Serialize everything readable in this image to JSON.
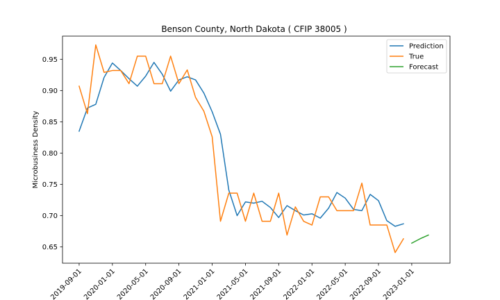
{
  "chart_data": {
    "type": "line",
    "title": "Benson County, North Dakota ( CFIP 38005 )",
    "xlabel": "",
    "ylabel": "Microbusiness Density",
    "ylim": [
      0.624,
      0.987
    ],
    "yticks": [
      0.65,
      0.7,
      0.75,
      0.8,
      0.85,
      0.9,
      0.95
    ],
    "ytick_labels": [
      "0.65",
      "0.70",
      "0.75",
      "0.80",
      "0.85",
      "0.90",
      "0.95"
    ],
    "xrange": [
      -2.0,
      44.6
    ],
    "xticks": [
      0,
      4,
      8,
      12,
      16,
      20,
      24,
      28,
      32,
      36,
      40
    ],
    "xtick_labels": [
      "2019-09-01",
      "2020-01-01",
      "2020-05-01",
      "2020-09-01",
      "2021-01-01",
      "2021-05-01",
      "2021-09-01",
      "2022-01-01",
      "2022-05-01",
      "2022-09-01",
      "2023-01-01"
    ],
    "legend": {
      "position": "top-right",
      "entries": [
        "Prediction",
        "True",
        "Forecast"
      ]
    },
    "series": [
      {
        "name": "Prediction",
        "color": "#1f77b4",
        "x": [
          0,
          1,
          2,
          3,
          4,
          5,
          6,
          7,
          8,
          9,
          10,
          11,
          12,
          13,
          14,
          15,
          16,
          17,
          18,
          19,
          20,
          21,
          22,
          23,
          24,
          25,
          26,
          27,
          28,
          29,
          30,
          31,
          32,
          33,
          34,
          35,
          36,
          37,
          38,
          39
        ],
        "values": [
          0.835,
          0.872,
          0.878,
          0.921,
          0.944,
          0.932,
          0.919,
          0.907,
          0.923,
          0.945,
          0.926,
          0.899,
          0.917,
          0.922,
          0.917,
          0.896,
          0.866,
          0.83,
          0.741,
          0.7,
          0.722,
          0.72,
          0.723,
          0.713,
          0.697,
          0.716,
          0.708,
          0.701,
          0.703,
          0.696,
          0.712,
          0.737,
          0.728,
          0.71,
          0.708,
          0.734,
          0.724,
          0.692,
          0.683,
          0.687
        ]
      },
      {
        "name": "True",
        "color": "#ff7f0e",
        "x": [
          0,
          1,
          2,
          3,
          4,
          5,
          6,
          7,
          8,
          9,
          10,
          11,
          12,
          13,
          14,
          15,
          16,
          17,
          18,
          19,
          20,
          21,
          22,
          23,
          24,
          25,
          26,
          27,
          28,
          29,
          30,
          31,
          32,
          33,
          34,
          35,
          36,
          37,
          38,
          39
        ],
        "values": [
          0.907,
          0.863,
          0.973,
          0.929,
          0.932,
          0.932,
          0.911,
          0.955,
          0.955,
          0.911,
          0.911,
          0.955,
          0.911,
          0.933,
          0.889,
          0.867,
          0.826,
          0.691,
          0.736,
          0.736,
          0.691,
          0.736,
          0.691,
          0.691,
          0.736,
          0.669,
          0.714,
          0.691,
          0.685,
          0.73,
          0.73,
          0.708,
          0.708,
          0.708,
          0.752,
          0.685,
          0.685,
          0.685,
          0.641,
          0.663
        ]
      },
      {
        "name": "Forecast",
        "color": "#2ca02c",
        "x": [
          40,
          41,
          42
        ],
        "values": [
          0.656,
          0.663,
          0.669
        ]
      }
    ]
  }
}
